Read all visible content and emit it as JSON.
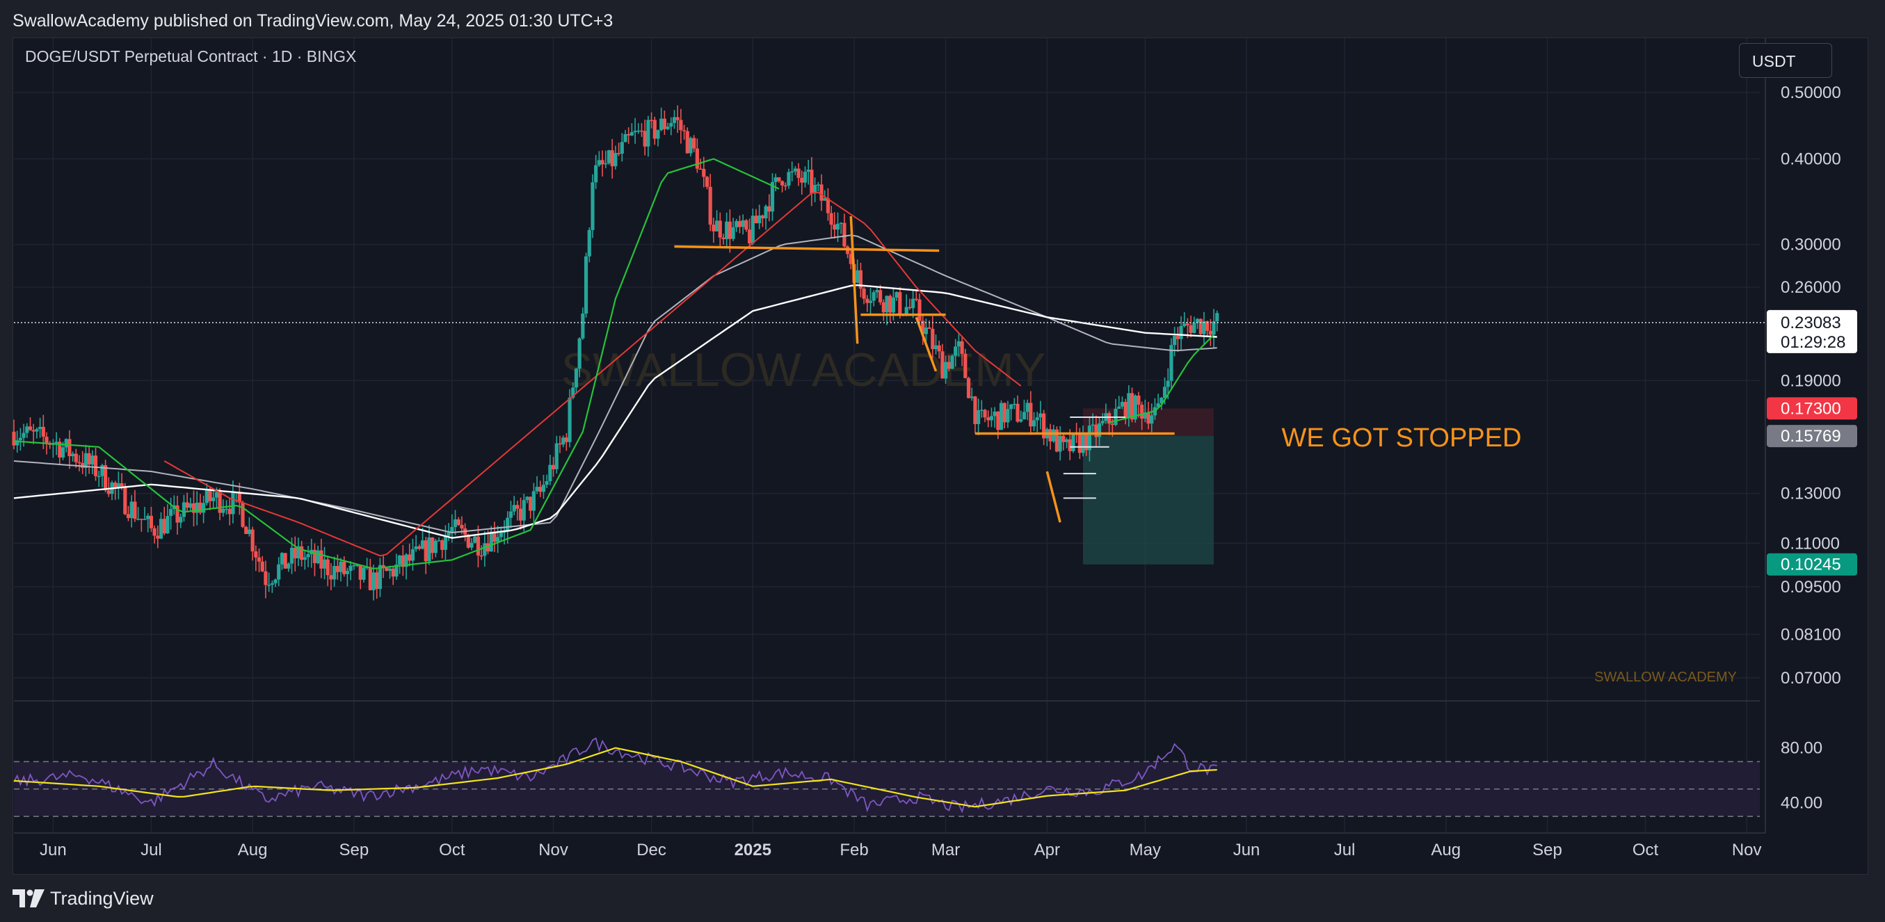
{
  "header": {
    "published": "SwallowAcademy published on TradingView.com, May 24, 2025 01:30 UTC+3"
  },
  "symbol": {
    "title": "DOGE/USDT Perpetual Contract · 1D · BINGX"
  },
  "toolbar": {
    "currency": "USDT"
  },
  "annotations": {
    "callout": "WE GOT STOPPED",
    "watermark_center": "SWALLOW ACADEMY",
    "watermark_corner": "SWALLOW ACADEMY"
  },
  "price_badges": {
    "last_price": "0.23083",
    "countdown": "01:29:28",
    "stop_loss": "0.17300",
    "entry": "0.15769",
    "target": "0.10245"
  },
  "colors": {
    "up": "#26a69a",
    "down": "#ef5350",
    "ema_fast": "#26c23a",
    "ema_mid": "#e53935",
    "sma_white": "#ffffff",
    "sma_grey": "#b2b5be",
    "drawing": "#f7931a",
    "rsi": "#7e57c2",
    "rsi_ma": "#f2e41c",
    "target_zone": "#26a69a"
  },
  "footer": {
    "brand": "TradingView"
  },
  "chart_data": {
    "type": "candlestick",
    "price_scale": "log",
    "ylim": [
      0.066,
      0.54
    ],
    "y_ticks": [
      "0.50000",
      "0.40000",
      "0.30000",
      "0.26000",
      "0.19000",
      "0.13000",
      "0.11000",
      "0.09500",
      "0.08100",
      "0.07000"
    ],
    "x_ticks": [
      "Jun",
      "Jul",
      "Aug",
      "Sep",
      "Oct",
      "Nov",
      "Dec",
      "2025",
      "Feb",
      "Mar",
      "Apr",
      "May",
      "Jun",
      "Jul",
      "Aug",
      "Sep",
      "Oct",
      "Nov"
    ],
    "range": [
      "2024-05-20",
      "2025-11-05"
    ],
    "last_price": 0.23083,
    "close_series": {
      "x": [
        "2024-05-20",
        "2024-06-01",
        "2024-06-15",
        "2024-07-01",
        "2024-07-08",
        "2024-07-20",
        "2024-07-28",
        "2024-08-05",
        "2024-08-15",
        "2024-08-25",
        "2024-09-07",
        "2024-09-20",
        "2024-10-01",
        "2024-10-10",
        "2024-10-20",
        "2024-10-28",
        "2024-11-05",
        "2024-11-10",
        "2024-11-13",
        "2024-11-20",
        "2024-11-25",
        "2024-12-02",
        "2024-12-08",
        "2024-12-15",
        "2024-12-20",
        "2024-12-31",
        "2025-01-10",
        "2025-01-18",
        "2025-01-26",
        "2025-02-03",
        "2025-02-10",
        "2025-02-20",
        "2025-02-28",
        "2025-03-05",
        "2025-03-11",
        "2025-03-20",
        "2025-03-28",
        "2025-04-06",
        "2025-04-15",
        "2025-04-25",
        "2025-05-05",
        "2025-05-10",
        "2025-05-15",
        "2025-05-23"
      ],
      "y": [
        0.16,
        0.155,
        0.14,
        0.115,
        0.12,
        0.128,
        0.125,
        0.098,
        0.106,
        0.101,
        0.097,
        0.105,
        0.115,
        0.11,
        0.12,
        0.13,
        0.16,
        0.24,
        0.38,
        0.4,
        0.43,
        0.44,
        0.46,
        0.4,
        0.32,
        0.31,
        0.38,
        0.37,
        0.33,
        0.26,
        0.25,
        0.24,
        0.2,
        0.21,
        0.165,
        0.17,
        0.17,
        0.15,
        0.158,
        0.175,
        0.17,
        0.22,
        0.23,
        0.231
      ]
    },
    "ema_fast": {
      "x": [
        "2024-05-20",
        "2024-06-15",
        "2024-07-10",
        "2024-07-28",
        "2024-08-15",
        "2024-09-07",
        "2024-10-01",
        "2024-10-25",
        "2024-11-10",
        "2024-11-20",
        "2024-12-05",
        "2024-12-20",
        "2025-01-10"
      ],
      "y": [
        0.155,
        0.152,
        0.122,
        0.125,
        0.108,
        0.101,
        0.104,
        0.115,
        0.16,
        0.25,
        0.38,
        0.4,
        0.36
      ]
    },
    "ema_mid": {
      "x": [
        "2024-07-05",
        "2024-07-25",
        "2024-08-15",
        "2024-09-10",
        "2025-01-20",
        "2025-02-05",
        "2025-02-20",
        "2025-03-10",
        "2025-03-25"
      ],
      "y": [
        0.145,
        0.128,
        0.118,
        0.105,
        0.36,
        0.32,
        0.26,
        0.21,
        0.185
      ]
    },
    "sma_grey": {
      "x": [
        "2024-05-20",
        "2024-07-01",
        "2024-08-01",
        "2024-09-01",
        "2024-10-01",
        "2024-11-01",
        "2024-11-15",
        "2024-12-01",
        "2024-12-20",
        "2025-01-10",
        "2025-02-01",
        "2025-03-01",
        "2025-04-01",
        "2025-04-20",
        "2025-05-10",
        "2025-05-23"
      ],
      "y": [
        0.145,
        0.14,
        0.132,
        0.123,
        0.114,
        0.118,
        0.16,
        0.23,
        0.27,
        0.3,
        0.31,
        0.27,
        0.235,
        0.215,
        0.21,
        0.212
      ]
    },
    "sma_white": {
      "x": [
        "2024-05-20",
        "2024-07-01",
        "2024-08-15",
        "2024-10-01",
        "2024-10-20",
        "2024-11-01",
        "2024-11-15",
        "2024-12-01",
        "2025-01-01",
        "2025-02-01",
        "2025-03-01",
        "2025-04-01",
        "2025-05-01",
        "2025-05-23"
      ],
      "y": [
        0.128,
        0.134,
        0.128,
        0.112,
        0.115,
        0.12,
        0.145,
        0.19,
        0.24,
        0.262,
        0.255,
        0.235,
        0.223,
        0.22
      ]
    },
    "drawings": {
      "horizontal_levels": [
        {
          "value": 0.298,
          "from": "2024-12-08",
          "to": "2025-02-27"
        },
        {
          "value": 0.237,
          "from": "2025-02-03",
          "to": "2025-03-01"
        },
        {
          "value": 0.159,
          "from": "2025-03-10",
          "to": "2025-05-10"
        }
      ],
      "stop_loss": 0.173,
      "entry": 0.15769,
      "target": 0.10245
    },
    "rsi": {
      "ylim": [
        27,
        92
      ],
      "y_ticks": [
        "80.00",
        "40.00"
      ],
      "bands": [
        70,
        50,
        30
      ],
      "x": [
        "2024-05-20",
        "2024-06-10",
        "2024-07-01",
        "2024-07-20",
        "2024-08-05",
        "2024-08-20",
        "2024-09-05",
        "2024-09-25",
        "2024-10-10",
        "2024-10-25",
        "2024-11-05",
        "2024-11-13",
        "2024-11-25",
        "2024-12-10",
        "2024-12-25",
        "2025-01-10",
        "2025-01-25",
        "2025-02-05",
        "2025-02-20",
        "2025-03-05",
        "2025-03-20",
        "2025-04-01",
        "2025-04-15",
        "2025-04-30",
        "2025-05-10",
        "2025-05-15",
        "2025-05-23"
      ],
      "y": [
        55,
        60,
        40,
        68,
        42,
        52,
        45,
        55,
        65,
        58,
        72,
        84,
        75,
        66,
        55,
        62,
        57,
        38,
        44,
        36,
        42,
        50,
        48,
        60,
        82,
        66,
        63
      ],
      "ma_x": [
        "2024-05-20",
        "2024-06-15",
        "2024-07-10",
        "2024-08-01",
        "2024-08-25",
        "2024-09-20",
        "2024-10-15",
        "2024-11-05",
        "2024-11-20",
        "2024-12-10",
        "2025-01-01",
        "2025-01-25",
        "2025-02-20",
        "2025-03-10",
        "2025-04-01",
        "2025-04-25",
        "2025-05-15",
        "2025-05-23"
      ],
      "ma_y": [
        56,
        52,
        44,
        52,
        49,
        51,
        58,
        68,
        80,
        70,
        52,
        57,
        44,
        37,
        45,
        49,
        63,
        64
      ]
    }
  }
}
